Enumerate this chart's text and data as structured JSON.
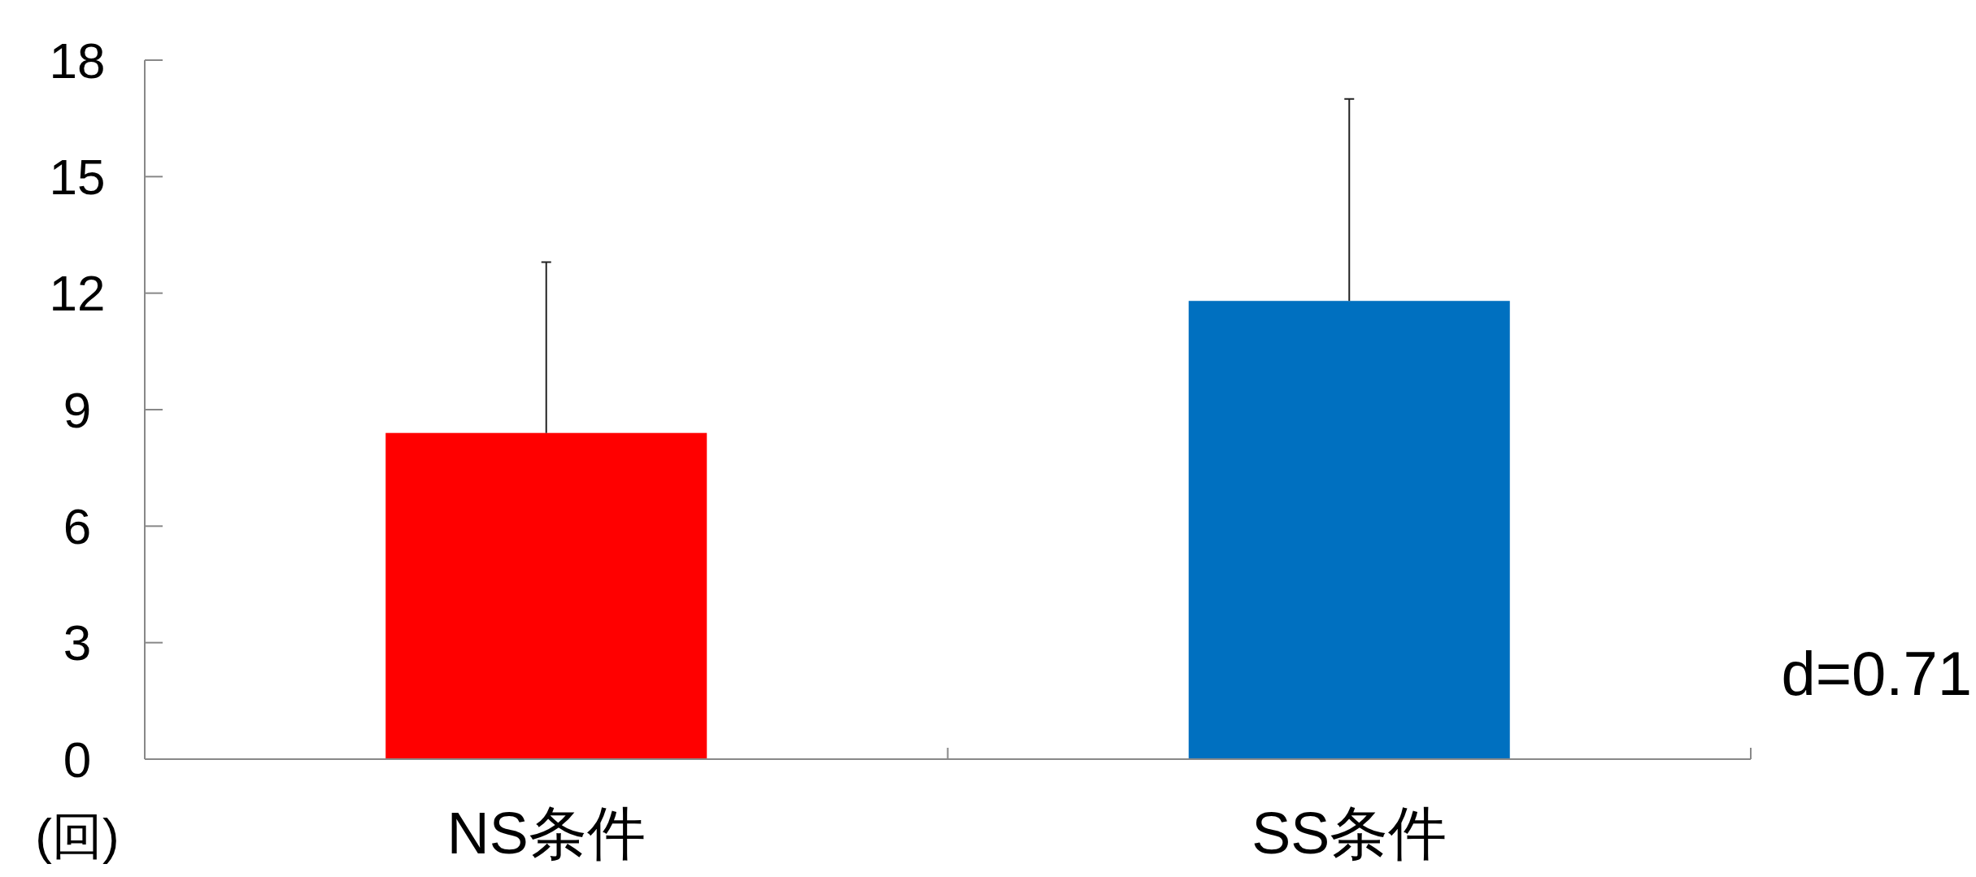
{
  "chart_data": {
    "type": "bar",
    "ylabel": "(回)",
    "categories": [
      "NS条件",
      "SS条件"
    ],
    "values": [
      8.4,
      11.8
    ],
    "colors": [
      "#ff0000",
      "#0070c0"
    ],
    "errors": [
      [
        8.4,
        12.8
      ],
      [
        11.8,
        17.0
      ]
    ],
    "ylim": [
      0,
      18
    ],
    "yticks": [
      0,
      3,
      6,
      9,
      12,
      15,
      18
    ],
    "annotations": [
      "d=0.71"
    ],
    "grid": false
  }
}
